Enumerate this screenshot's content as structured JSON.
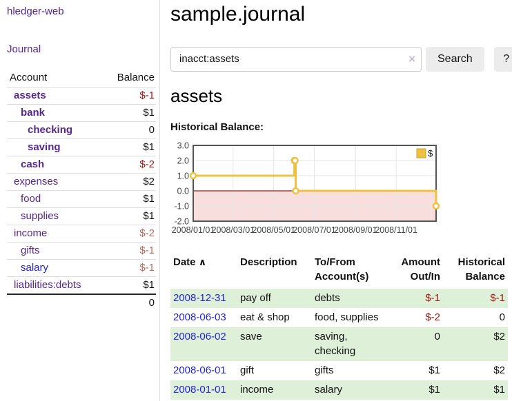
{
  "sidebar": {
    "app_title": "hledger-web",
    "journal_link": "Journal",
    "accounts_table": {
      "headers": {
        "account": "Account",
        "balance": "Balance"
      },
      "rows": [
        {
          "account": "assets",
          "balance": "$-1",
          "depth": 1,
          "in_account": true,
          "balance_tone": "negative-strong"
        },
        {
          "account": "bank",
          "balance": "$1",
          "depth": 2,
          "in_account": true,
          "balance_tone": "normal"
        },
        {
          "account": "checking",
          "balance": "0",
          "depth": 3,
          "in_account": true,
          "balance_tone": "normal"
        },
        {
          "account": "saving",
          "balance": "$1",
          "depth": 3,
          "in_account": true,
          "balance_tone": "normal"
        },
        {
          "account": "cash",
          "balance": "$-2",
          "depth": 2,
          "in_account": true,
          "balance_tone": "negative-strong"
        },
        {
          "account": "expenses",
          "balance": "$2",
          "depth": 1,
          "in_account": false,
          "balance_tone": "normal"
        },
        {
          "account": "food",
          "balance": "$1",
          "depth": 2,
          "in_account": false,
          "balance_tone": "normal"
        },
        {
          "account": "supplies",
          "balance": "$1",
          "depth": 2,
          "in_account": false,
          "balance_tone": "normal"
        },
        {
          "account": "income",
          "balance": "$-2",
          "depth": 1,
          "in_account": false,
          "balance_tone": "negative-soft"
        },
        {
          "account": "gifts",
          "balance": "$-1",
          "depth": 2,
          "in_account": false,
          "balance_tone": "negative-soft"
        },
        {
          "account": "salary",
          "balance": "$-1",
          "depth": 2,
          "in_account": false,
          "balance_tone": "negative-soft",
          "link_tone": "unvisited"
        },
        {
          "account": "liabilities:debts",
          "balance": "$1",
          "depth": 1,
          "in_account": false,
          "balance_tone": "normal"
        }
      ],
      "total": "0"
    }
  },
  "main": {
    "title": "sample.journal",
    "search": {
      "value": "inacct:assets",
      "clear_icon": "×",
      "button_label": "Search",
      "help_label": "?"
    },
    "account_heading": "assets",
    "register": {
      "headers": [
        "Date",
        "Description",
        "To/From Account(s)",
        "Amount Out/In",
        "Historical Balance"
      ],
      "sort_icon": "∧",
      "rows": [
        {
          "date": "2008-12-31",
          "description": "pay off",
          "accounts": "debts",
          "amount": "$-1",
          "balance": "$-1"
        },
        {
          "date": "2008-06-03",
          "description": "eat & shop",
          "accounts": "food, supplies",
          "amount": "$-2",
          "balance": "0"
        },
        {
          "date": "2008-06-02",
          "description": "save",
          "accounts": "saving, checking",
          "amount": "0",
          "balance": "$2"
        },
        {
          "date": "2008-06-01",
          "description": "gift",
          "accounts": "gifts",
          "amount": "$1",
          "balance": "$2"
        },
        {
          "date": "2008-01-01",
          "description": "income",
          "accounts": "salary",
          "amount": "$1",
          "balance": "$1"
        }
      ]
    }
  },
  "chart_data": {
    "type": "line",
    "step": true,
    "title": "Historical Balance:",
    "legend": [
      {
        "label": "$",
        "color": "#edc240"
      }
    ],
    "legend_position": "top-right",
    "x_tick_labels": [
      "2008/01/01",
      "2008/03/01",
      "2008/05/01",
      "2008/07/01",
      "2008/09/01",
      "2008/11/01"
    ],
    "x_tick_days": [
      0,
      60,
      121,
      182,
      244,
      305
    ],
    "y_tick_labels": [
      "3.0",
      "2.0",
      "1.0",
      "0.0",
      "-1.0",
      "-2.0"
    ],
    "y_ticks": [
      3,
      2,
      1,
      0,
      -1,
      -2
    ],
    "ylim": [
      -2,
      3
    ],
    "xlim_days": [
      0,
      365
    ],
    "series": [
      {
        "name": "$",
        "color": "#edc240",
        "points": [
          {
            "date": "2008/01/01",
            "day": 0,
            "value": 1
          },
          {
            "date": "2008/06/01",
            "day": 152,
            "value": 2
          },
          {
            "date": "2008/06/02",
            "day": 153,
            "value": 2
          },
          {
            "date": "2008/06/03",
            "day": 154,
            "value": 0
          },
          {
            "date": "2008/12/31",
            "day": 365,
            "value": -1
          }
        ]
      }
    ],
    "grid": true,
    "grid_color": "#e6e6e6",
    "border_color": "#545454",
    "negative_region_color": "#f9dede",
    "zero_line_color": "#872222",
    "marker": {
      "fill": "#ffffff",
      "stroke": "#edc240",
      "radius": 4
    }
  }
}
